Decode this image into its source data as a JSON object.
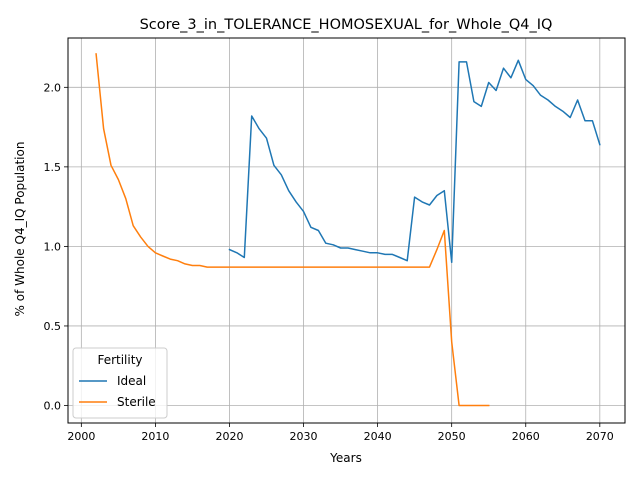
{
  "chart_data": {
    "type": "line",
    "title": "Score_3_in_TOLERANCE_HOMOSEXUAL_for_Whole_Q4_IQ",
    "xlabel": "Years",
    "ylabel": "% of Whole Q4_IQ Population",
    "xlim": [
      1998.2,
      2073.4
    ],
    "ylim": [
      -0.11,
      2.31
    ],
    "xticks": [
      2000,
      2010,
      2020,
      2030,
      2040,
      2050,
      2060,
      2070
    ],
    "yticks": [
      0.0,
      0.5,
      1.0,
      1.5,
      2.0
    ],
    "xtick_labels": [
      "2000",
      "2010",
      "2020",
      "2030",
      "2040",
      "2050",
      "2060",
      "2070"
    ],
    "ytick_labels": [
      "0.0",
      "0.5",
      "1.0",
      "1.5",
      "2.0"
    ],
    "grid": true,
    "legend": {
      "title": "Fertility",
      "placement": "lower-left"
    },
    "series": [
      {
        "name": "Ideal",
        "color": "#1f77b4",
        "x": [
          2020,
          2021,
          2022,
          2023,
          2024,
          2025,
          2026,
          2027,
          2028,
          2029,
          2030,
          2031,
          2032,
          2033,
          2034,
          2035,
          2036,
          2037,
          2038,
          2039,
          2040,
          2041,
          2042,
          2043,
          2044,
          2045,
          2046,
          2047,
          2048,
          2049,
          2050,
          2051,
          2052,
          2053,
          2054,
          2055,
          2056,
          2057,
          2058,
          2059,
          2060,
          2061,
          2062,
          2063,
          2064,
          2065,
          2066,
          2067,
          2068,
          2069,
          2070
        ],
        "y": [
          0.98,
          0.96,
          0.93,
          1.82,
          1.74,
          1.68,
          1.51,
          1.45,
          1.35,
          1.28,
          1.22,
          1.12,
          1.1,
          1.02,
          1.01,
          0.99,
          0.99,
          0.98,
          0.97,
          0.96,
          0.96,
          0.95,
          0.95,
          0.93,
          0.91,
          1.31,
          1.28,
          1.26,
          1.32,
          1.35,
          0.9,
          2.16,
          2.16,
          1.91,
          1.88,
          2.03,
          1.98,
          2.12,
          2.06,
          2.17,
          2.05,
          2.01,
          1.95,
          1.92,
          1.88,
          1.85,
          1.81,
          1.92,
          1.79,
          1.79,
          1.64
        ]
      },
      {
        "name": "Sterile",
        "color": "#ff7f0e",
        "x": [
          2002,
          2003,
          2004,
          2005,
          2006,
          2007,
          2008,
          2009,
          2010,
          2011,
          2012,
          2013,
          2014,
          2015,
          2016,
          2017,
          2018,
          2019,
          2020,
          2025,
          2030,
          2035,
          2040,
          2045,
          2047,
          2048,
          2049,
          2050,
          2051,
          2052,
          2053,
          2054,
          2055
        ],
        "y": [
          2.21,
          1.74,
          1.51,
          1.42,
          1.3,
          1.13,
          1.06,
          1.0,
          0.96,
          0.94,
          0.92,
          0.91,
          0.89,
          0.88,
          0.88,
          0.87,
          0.87,
          0.87,
          0.87,
          0.87,
          0.87,
          0.87,
          0.87,
          0.87,
          0.87,
          0.98,
          1.1,
          0.4,
          0.0,
          0.0,
          0.0,
          0.0,
          0.0
        ]
      }
    ]
  }
}
